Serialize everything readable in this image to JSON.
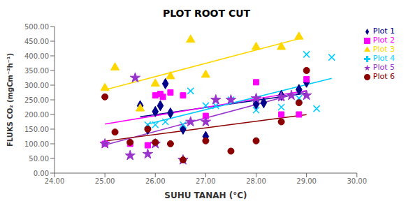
{
  "chart_data": {
    "type": "scatter",
    "title": "PLOT ROOT CUT",
    "x_label": "SUHU TANAH (°C)",
    "y_label": "FLUKS CO₂ (mgCm⁻²h⁻¹)",
    "xlim": [
      24.0,
      30.0
    ],
    "ylim": [
      0.0,
      500.0
    ],
    "xticks": [
      {
        "value": 24.0,
        "label": "24.00"
      },
      {
        "value": 25.0,
        "label": "25.00"
      },
      {
        "value": 26.0,
        "label": "26.00"
      },
      {
        "value": 27.0,
        "label": "27.00"
      },
      {
        "value": 28.0,
        "label": "28.00"
      },
      {
        "value": 29.0,
        "label": "29.00"
      },
      {
        "value": 30.0,
        "label": "30.00"
      }
    ],
    "yticks": [
      {
        "value": 0.0,
        "label": "0.00"
      },
      {
        "value": 50.0,
        "label": "50.00"
      },
      {
        "value": 100.0,
        "label": "100.00"
      },
      {
        "value": 150.0,
        "label": "150.00"
      },
      {
        "value": 200.0,
        "label": "200.00"
      },
      {
        "value": 250.0,
        "label": "250.00"
      },
      {
        "value": 300.0,
        "label": "300.00"
      },
      {
        "value": 350.0,
        "label": "350.00"
      },
      {
        "value": 400.0,
        "label": "400.00"
      },
      {
        "value": 450.0,
        "label": "450.00"
      },
      {
        "value": 500.0,
        "label": "500.00"
      }
    ],
    "grid": false,
    "legend": "right",
    "series": [
      {
        "name": "Plot 1",
        "color": "#00008B",
        "marker": "diamond",
        "x": [
          25.7,
          25.85,
          26.0,
          26.1,
          26.2,
          26.3,
          26.55,
          27.0,
          28.0,
          28.15,
          28.5,
          28.85,
          29.0
        ],
        "values": [
          230,
          150,
          210,
          230,
          305,
          205,
          150,
          125,
          235,
          240,
          265,
          285,
          310
        ],
        "trendline": {
          "x": [
            25.7,
            29.0
          ],
          "values": [
            192.13,
            272.78
          ]
        }
      },
      {
        "name": "Plot 2",
        "color": "#FF00FF",
        "marker": "square",
        "x": [
          25.0,
          25.5,
          25.85,
          26.0,
          26.1,
          26.15,
          26.3,
          26.55,
          27.0,
          28.0,
          28.5,
          28.85,
          29.0
        ],
        "values": [
          100,
          100,
          95,
          265,
          270,
          260,
          275,
          265,
          195,
          310,
          200,
          200,
          320
        ],
        "trendline": {
          "x": [
            25.0,
            29.0
          ],
          "values": [
            167.28,
            281.63
          ]
        }
      },
      {
        "name": "Plot 3",
        "color": "#FFD700",
        "marker": "triangle",
        "x": [
          25.0,
          25.2,
          25.7,
          26.0,
          26.3,
          26.7,
          27.0,
          28.0,
          28.5,
          28.85
        ],
        "values": [
          290,
          360,
          220,
          305,
          330,
          455,
          335,
          430,
          430,
          465
        ],
        "trendline": {
          "x": [
            25.0,
            28.85
          ],
          "values": [
            283.84,
            458.28
          ]
        }
      },
      {
        "name": "Plot 4",
        "color": "#00CCFF",
        "marker": "x",
        "x": [
          25.85,
          26.0,
          26.2,
          26.55,
          26.7,
          27.0,
          27.2,
          27.5,
          28.0,
          28.5,
          28.85,
          29.0,
          29.2,
          29.5
        ],
        "values": [
          165,
          165,
          175,
          165,
          280,
          230,
          230,
          250,
          215,
          225,
          255,
          405,
          220,
          395
        ],
        "trendline": {
          "x": [
            25.85,
            29.5
          ],
          "values": [
            167.4,
            323.28
          ]
        }
      },
      {
        "name": "Plot 5",
        "color": "#9933CC",
        "marker": "star",
        "x": [
          25.0,
          25.5,
          25.6,
          25.85,
          26.0,
          26.55,
          26.7,
          27.0,
          27.2,
          27.5,
          28.0,
          28.5,
          28.7,
          29.0
        ],
        "values": [
          100,
          60,
          325,
          65,
          100,
          45,
          175,
          175,
          250,
          250,
          255,
          260,
          265,
          265
        ],
        "trendline": {
          "x": [
            25.0,
            29.0
          ],
          "values": [
            96.01,
            279.9
          ]
        }
      },
      {
        "name": "Plot 6",
        "color": "#8B0000",
        "marker": "circle",
        "x": [
          25.0,
          25.2,
          25.5,
          25.85,
          26.0,
          26.3,
          26.55,
          27.0,
          27.5,
          28.0,
          28.5,
          28.85,
          29.0
        ],
        "values": [
          260,
          140,
          105,
          150,
          105,
          100,
          45,
          110,
          75,
          110,
          175,
          240,
          350
        ],
        "trendline": {
          "x": [
            25.0,
            29.0
          ],
          "values": [
            109.23,
            199.13
          ]
        }
      }
    ]
  }
}
